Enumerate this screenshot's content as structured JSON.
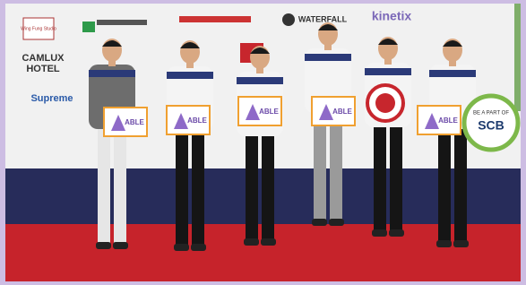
{
  "backdrop": {
    "logos": [
      "Wing Fung Studio",
      "CAMLUX",
      "HOTEL",
      "Supreme",
      "WATERFALL",
      "kinetix"
    ]
  },
  "signs": [
    "ABLE",
    "ABLE",
    "ABLE",
    "ABLE",
    "ABLE"
  ],
  "badge": {
    "top": "BE A PART OF",
    "main": "SCB"
  }
}
